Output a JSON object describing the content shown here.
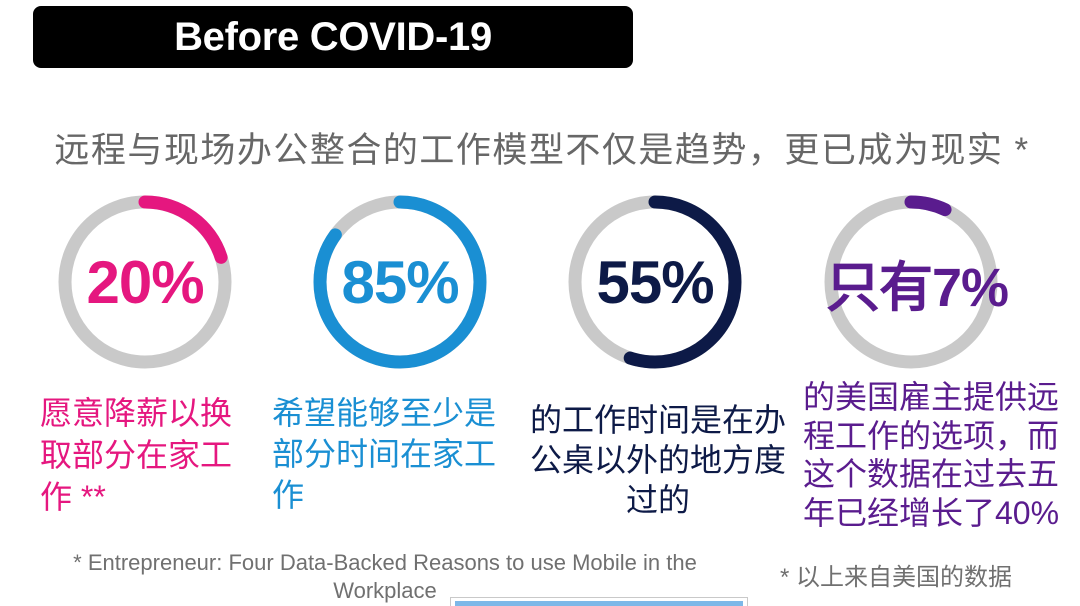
{
  "header": {
    "title": "Before COVID-19"
  },
  "subtitle": "远程与现场办公整合的工作模型不仅是趋势，更已成为现实 *",
  "chart_data": [
    {
      "type": "pie",
      "donut": true,
      "values": [
        20,
        80
      ],
      "colors": [
        "#e5177f",
        "#c9c9c9"
      ],
      "center_label": "20%",
      "caption_lines": [
        "愿意降薪以换",
        "取部分在家工",
        "作 **"
      ]
    },
    {
      "type": "pie",
      "donut": true,
      "values": [
        85,
        15
      ],
      "colors": [
        "#1a8fd3",
        "#c9c9c9"
      ],
      "center_label": "85%",
      "caption_lines": [
        "希望能够至少是",
        "部分时间在家工",
        "作"
      ]
    },
    {
      "type": "pie",
      "donut": true,
      "values": [
        55,
        45
      ],
      "colors": [
        "#0d1a47",
        "#c9c9c9"
      ],
      "center_label": "55%",
      "caption_lines": [
        "的工作时间是在办",
        "公桌以外的地方度",
        "过的"
      ]
    },
    {
      "type": "pie",
      "donut": true,
      "values": [
        7,
        93
      ],
      "colors": [
        "#5a1c8e",
        "#c9c9c9"
      ],
      "center_label": "只有7%",
      "caption_lines": [
        "的美国雇主提供远",
        "程工作的选项，而",
        "这个数据在过去五",
        "年已经增长了40%"
      ]
    }
  ],
  "footnotes": {
    "source_lines": [
      "* Entrepreneur: Four Data-Backed Reasons to use Mobile in the",
      "Workplace"
    ],
    "region_note": "* 以上来自美国的数据"
  }
}
